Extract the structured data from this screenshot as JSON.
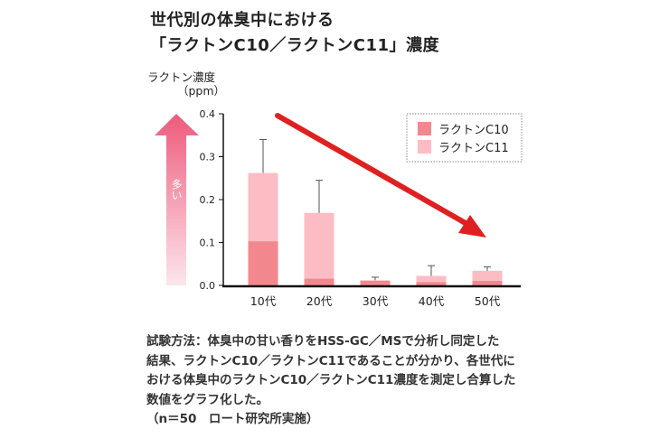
{
  "title_lines": [
    "世代別の体臭中における",
    "「ラクトンC10／ラクトンC11」濃度"
  ],
  "chart_data": {
    "type": "bar",
    "stacked": true,
    "ylabel": "ラクトン濃度",
    "yunit": "（ppm）",
    "ylim": [
      0,
      0.4
    ],
    "yticks": [
      "0.0",
      "0.1",
      "0.2",
      "0.3",
      "0.4"
    ],
    "categories": [
      "10代",
      "20代",
      "30代",
      "40代",
      "50代"
    ],
    "series": [
      {
        "name": "ラクトンC10",
        "color": "#f2888e",
        "values": [
          0.103,
          0.016,
          0.011,
          0.008,
          0.011
        ]
      },
      {
        "name": "ラクトンC11",
        "color": "#fbbdc3",
        "values": [
          0.159,
          0.153,
          0.001,
          0.014,
          0.023
        ]
      }
    ],
    "error_upper": [
      0.34,
      0.245,
      0.019,
      0.046,
      0.043
    ],
    "legend_position": "top-right",
    "side_arrow_label": "多い",
    "trend_arrow_color": "#e02020"
  },
  "notes": [
    "試験方法：体臭中の甘い香りをHSS-GC／MSで分析し同定した",
    "結果、ラクトンC10／ラクトンC11であることが分かり、各世代に",
    "おける体臭中のラクトンC10／ラクトンC11濃度を測定し合算した",
    "数値をグラフ化した。",
    "（n＝50　ロート研究所実施）"
  ]
}
